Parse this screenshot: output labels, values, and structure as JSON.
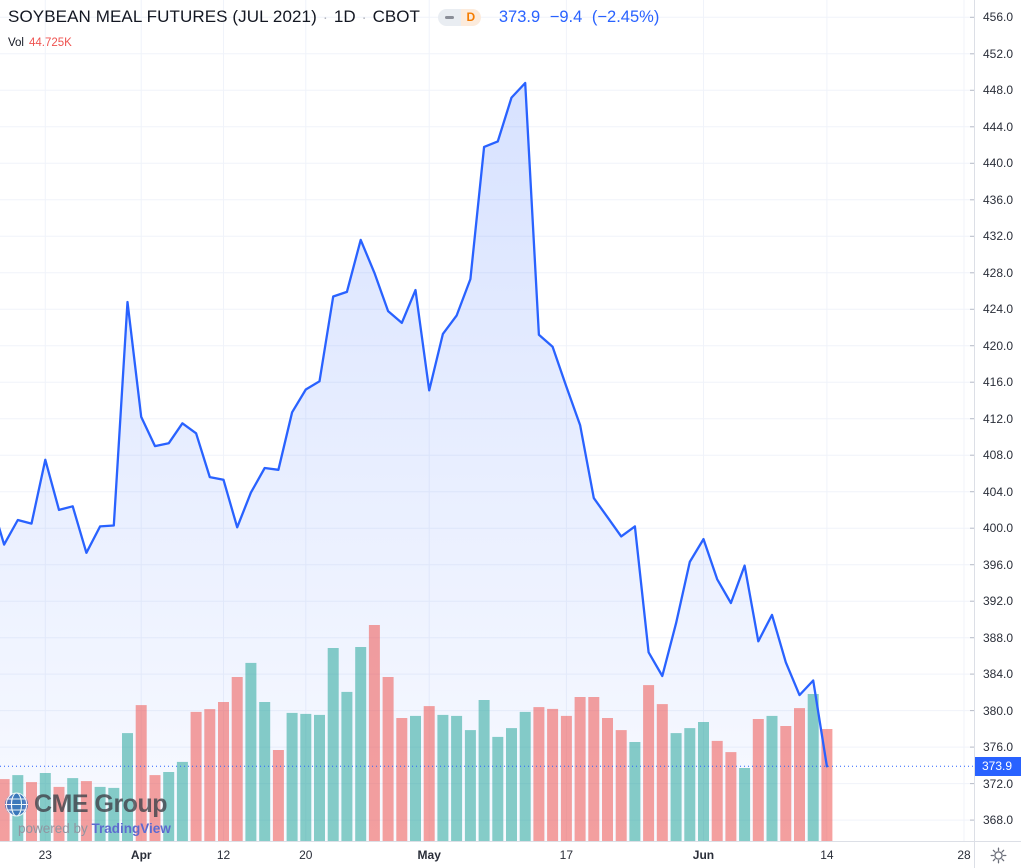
{
  "header": {
    "symbol": "SOYBEAN MEAL FUTURES (JUL 2021)",
    "separator": "·",
    "interval": "1D",
    "exchange": "CBOT",
    "interval_badge_letter": "D",
    "quote": {
      "last": "373.9",
      "change": "−9.4",
      "change_pct": "(−2.45%)"
    },
    "legend": {
      "label": "Vol",
      "value": "44.725K"
    }
  },
  "attribution": {
    "logo_text": "CME Group",
    "powered_by": "powered by ",
    "vendor": "TradingView"
  },
  "colors": {
    "line": "#2962ff",
    "area_top": "rgba(41,98,255,0.20)",
    "area_bottom": "rgba(41,98,255,0.03)",
    "volume_up": "rgba(38,166,154,0.55)",
    "volume_down": "rgba(239,83,80,0.55)",
    "grid": "#f0f3fa",
    "axis_border": "#dcdfe6",
    "axis_text": "#2a2e39",
    "last_price_bg": "#2962ff",
    "vol_value": "#ef5350",
    "title_text": "#131722",
    "quote_text": "#2962ff",
    "badge_letter": "#f57c00",
    "globe_blue": "#2c66b8",
    "vendor_blue": "#5d6ad0",
    "tick_mark": "#b8bcc8",
    "gear_icon": "#6a6d78"
  },
  "chart_data": {
    "type": "area",
    "title": "SOYBEAN MEAL FUTURES (JUL 2021) 1D CBOT",
    "xlabel": "",
    "ylabel": "price",
    "dates": [
      "Mar 18",
      "Mar 19",
      "Mar 22",
      "Mar 23",
      "Mar 24",
      "Mar 25",
      "Mar 26",
      "Mar 29",
      "Mar 30",
      "Mar 31",
      "Apr 1",
      "Apr 5",
      "Apr 6",
      "Apr 7",
      "Apr 8",
      "Apr 9",
      "Apr 12",
      "Apr 13",
      "Apr 14",
      "Apr 15",
      "Apr 16",
      "Apr 19",
      "Apr 20",
      "Apr 21",
      "Apr 22",
      "Apr 23",
      "Apr 26",
      "Apr 27",
      "Apr 28",
      "Apr 29",
      "Apr 30",
      "May 3",
      "May 4",
      "May 5",
      "May 6",
      "May 7",
      "May 10",
      "May 11",
      "May 12",
      "May 13",
      "May 14",
      "May 17",
      "May 18",
      "May 19",
      "May 20",
      "May 21",
      "May 24",
      "May 25",
      "May 26",
      "May 27",
      "May 28",
      "Jun 1",
      "Jun 2",
      "Jun 3",
      "Jun 4",
      "Jun 7",
      "Jun 8",
      "Jun 9",
      "Jun 10",
      "Jun 11",
      "Jun 14"
    ],
    "close": [
      398.2,
      400.9,
      400.5,
      407.5,
      402.0,
      402.4,
      397.3,
      400.2,
      400.3,
      424.8,
      412.2,
      409.0,
      409.3,
      411.5,
      410.4,
      405.6,
      405.3,
      400.1,
      403.9,
      406.6,
      406.4,
      412.7,
      415.2,
      416.1,
      425.4,
      425.9,
      431.6,
      428.0,
      423.8,
      422.5,
      426.1,
      415.1,
      421.3,
      423.3,
      427.3,
      441.8,
      442.4,
      447.2,
      448.8,
      421.2,
      419.9,
      415.5,
      411.3,
      403.3,
      401.2,
      399.1,
      400.2,
      386.4,
      383.8,
      389.6,
      396.3,
      398.8,
      394.4,
      391.8,
      395.9,
      387.6,
      390.5,
      385.3,
      381.7,
      383.3,
      373.9
    ],
    "volume_k": [
      24.9,
      26.5,
      23.7,
      27.3,
      21.8,
      25.3,
      24.1,
      21.8,
      21.4,
      43.1,
      54.2,
      26.5,
      27.7,
      31.7,
      51.5,
      52.6,
      55.4,
      65.3,
      70.9,
      55.4,
      36.4,
      51.1,
      50.7,
      50.3,
      76.8,
      59.4,
      77.2,
      85.9,
      65.3,
      49.1,
      49.9,
      53.8,
      50.3,
      49.9,
      44.3,
      56.2,
      41.6,
      45.1,
      51.5,
      53.4,
      52.7,
      49.9,
      57.4,
      57.4,
      49.1,
      44.3,
      39.6,
      62.1,
      54.6,
      43.1,
      45.1,
      47.5,
      40.0,
      35.6,
      29.3,
      48.7,
      49.9,
      45.9,
      53.0,
      58.6,
      44.725
    ],
    "pre_point": {
      "date": "Mar 17",
      "close": 403.3
    },
    "last_price": 373.9,
    "last_price_label": "373.9",
    "y_ticks": [
      456,
      452,
      448,
      444,
      440,
      436,
      432,
      428,
      424,
      420,
      416,
      412,
      408,
      404,
      400,
      396,
      392,
      388,
      384,
      380,
      376,
      372,
      368
    ],
    "x_ticks": [
      {
        "label": "23",
        "index": 3
      },
      {
        "label": "Apr",
        "index": 10
      },
      {
        "label": "12",
        "index": 16
      },
      {
        "label": "20",
        "index": 22
      },
      {
        "label": "May",
        "index": 31
      },
      {
        "label": "17",
        "index": 41
      },
      {
        "label": "Jun",
        "index": 51
      },
      {
        "label": "14",
        "index": 60
      },
      {
        "label": "28",
        "index": 70
      }
    ],
    "ylim": [
      365.6,
      457.9
    ],
    "xlim_bar_index": [
      -0.3,
      70.8
    ],
    "volume_ylim_k": [
      0,
      333.3
    ],
    "grid": true,
    "legend_position": "none"
  }
}
